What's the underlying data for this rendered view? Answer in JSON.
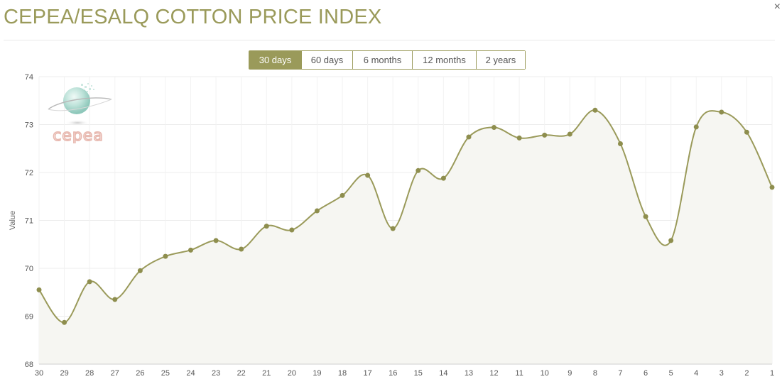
{
  "header": {
    "title": "CEPEA/ESALQ COTTON PRICE INDEX",
    "close_glyph": "×"
  },
  "range_selector": {
    "selected": "30 days",
    "buttons": [
      {
        "label": "30 days"
      },
      {
        "label": "60 days"
      },
      {
        "label": "6 months"
      },
      {
        "label": "12 months"
      },
      {
        "label": "2 years"
      }
    ]
  },
  "watermark": {
    "text": "cepea",
    "icon": "cepea-globe-logo"
  },
  "colors": {
    "accent": "#9a9a5a",
    "area_fill": "#f6f6f2",
    "grid": "#ececec"
  },
  "chart_data": {
    "type": "area",
    "ylabel": "Value",
    "xlabel": "",
    "ylim": [
      68,
      74
    ],
    "yticks": [
      68,
      69,
      70,
      71,
      72,
      73,
      74
    ],
    "grid": true,
    "smooth": true,
    "categories": [
      "30",
      "29",
      "28",
      "27",
      "26",
      "25",
      "24",
      "23",
      "22",
      "21",
      "20",
      "19",
      "18",
      "17",
      "16",
      "15",
      "14",
      "13",
      "12",
      "11",
      "10",
      "9",
      "8",
      "7",
      "6",
      "5",
      "4",
      "3",
      "2",
      "1"
    ],
    "values": [
      69.55,
      68.87,
      69.72,
      69.35,
      69.95,
      70.25,
      70.38,
      70.58,
      70.4,
      70.88,
      70.8,
      71.2,
      71.52,
      71.94,
      70.83,
      72.04,
      71.88,
      72.74,
      72.94,
      72.72,
      72.78,
      72.8,
      73.3,
      72.6,
      71.08,
      70.58,
      72.95,
      73.26,
      72.84,
      71.69
    ]
  }
}
